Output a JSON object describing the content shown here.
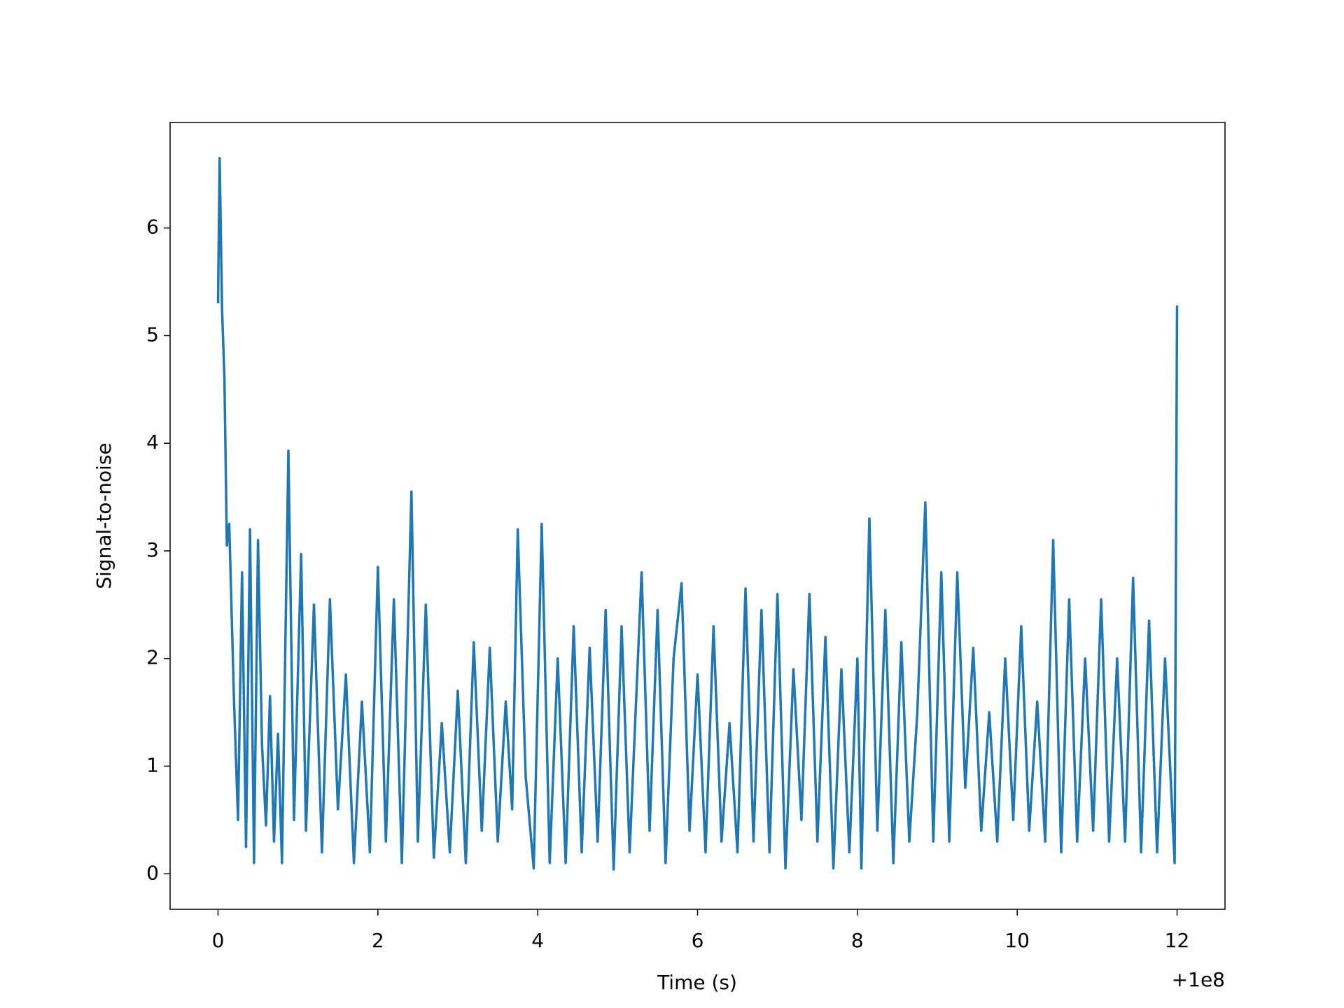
{
  "chart_data": {
    "type": "line",
    "xlabel": "Time (s)",
    "ylabel": "Signal-to-noise",
    "x_offset_label": "+1e8",
    "xlim": [
      -0.6,
      12.6
    ],
    "ylim": [
      -0.33,
      6.98
    ],
    "xticks": [
      0,
      2,
      4,
      6,
      8,
      10,
      12
    ],
    "yticks": [
      0,
      1,
      2,
      3,
      4,
      5,
      6
    ],
    "grid": false,
    "x": [
      0,
      0.02,
      0.05,
      0.08,
      0.11,
      0.14,
      0.2,
      0.25,
      0.3,
      0.35,
      0.4,
      0.45,
      0.5,
      0.55,
      0.6,
      0.65,
      0.7,
      0.75,
      0.8,
      0.88,
      0.95,
      1.04,
      1.1,
      1.2,
      1.3,
      1.4,
      1.5,
      1.6,
      1.7,
      1.8,
      1.9,
      2.0,
      2.1,
      2.2,
      2.3,
      2.42,
      2.5,
      2.6,
      2.7,
      2.8,
      2.9,
      3.0,
      3.1,
      3.2,
      3.3,
      3.4,
      3.5,
      3.6,
      3.68,
      3.75,
      3.85,
      3.95,
      4.05,
      4.15,
      4.25,
      4.35,
      4.45,
      4.55,
      4.65,
      4.75,
      4.85,
      4.95,
      5.05,
      5.15,
      5.3,
      5.4,
      5.5,
      5.6,
      5.7,
      5.8,
      5.9,
      6.0,
      6.1,
      6.2,
      6.3,
      6.4,
      6.5,
      6.6,
      6.7,
      6.8,
      6.9,
      7.0,
      7.1,
      7.2,
      7.3,
      7.4,
      7.5,
      7.6,
      7.7,
      7.8,
      7.9,
      8.0,
      8.05,
      8.15,
      8.25,
      8.35,
      8.45,
      8.55,
      8.65,
      8.75,
      8.85,
      8.95,
      9.05,
      9.15,
      9.25,
      9.35,
      9.45,
      9.55,
      9.65,
      9.75,
      9.85,
      9.95,
      10.05,
      10.15,
      10.25,
      10.35,
      10.45,
      10.55,
      10.65,
      10.75,
      10.85,
      10.95,
      11.05,
      11.15,
      11.25,
      11.35,
      11.45,
      11.55,
      11.65,
      11.75,
      11.85,
      11.97,
      12.0
    ],
    "series": [
      {
        "color": "#1f77b4",
        "values": [
          5.3,
          6.65,
          5.25,
          4.6,
          3.05,
          3.25,
          1.6,
          0.5,
          2.8,
          0.25,
          3.2,
          0.1,
          3.1,
          1.2,
          0.45,
          1.65,
          0.3,
          1.3,
          0.1,
          3.93,
          0.5,
          2.97,
          0.4,
          2.5,
          0.2,
          2.55,
          0.6,
          1.85,
          0.1,
          1.6,
          0.2,
          2.85,
          0.3,
          2.55,
          0.1,
          3.55,
          0.3,
          2.5,
          0.15,
          1.4,
          0.2,
          1.7,
          0.1,
          2.15,
          0.4,
          2.1,
          0.3,
          1.6,
          0.6,
          3.2,
          0.9,
          0.05,
          3.25,
          0.1,
          2.0,
          0.1,
          2.3,
          0.2,
          2.1,
          0.3,
          2.45,
          0.04,
          2.3,
          0.2,
          2.8,
          0.4,
          2.45,
          0.1,
          2.0,
          2.7,
          0.4,
          1.85,
          0.2,
          2.3,
          0.3,
          1.4,
          0.2,
          2.65,
          0.3,
          2.45,
          0.2,
          2.6,
          0.05,
          1.9,
          0.5,
          2.6,
          0.3,
          2.2,
          0.05,
          1.9,
          0.2,
          2.0,
          0.05,
          3.3,
          0.4,
          2.45,
          0.1,
          2.15,
          0.3,
          1.5,
          3.45,
          0.3,
          2.8,
          0.3,
          2.8,
          0.8,
          2.1,
          0.4,
          1.5,
          0.3,
          2.0,
          0.5,
          2.3,
          0.4,
          1.6,
          0.3,
          3.1,
          0.2,
          2.55,
          0.3,
          2.0,
          0.4,
          2.55,
          0.3,
          2.0,
          0.3,
          2.75,
          0.2,
          2.35,
          0.2,
          2.0,
          0.1,
          5.28
        ]
      }
    ]
  }
}
